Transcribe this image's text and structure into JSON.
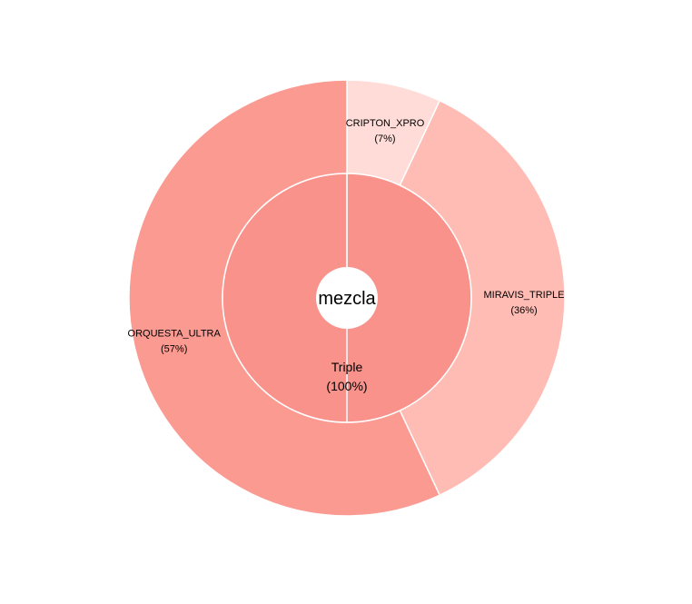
{
  "chart_data": {
    "type": "sunburst",
    "center_label": "mezcla",
    "inner_ring": [
      {
        "label": "Triple",
        "percent_label": "(100%)",
        "value": 100,
        "color": "#f9928b"
      }
    ],
    "outer_ring": [
      {
        "label": "CRIPTON_XPRO",
        "percent_label": "(7%)",
        "value": 7,
        "color": "#ffdcd8"
      },
      {
        "label": "MIRAVIS_TRIPLE",
        "percent_label": "(36%)",
        "value": 36,
        "color": "#febcb4"
      },
      {
        "label": "ORQUESTA_ULTRA",
        "percent_label": "(57%)",
        "value": 57,
        "color": "#fb9a91"
      }
    ]
  }
}
